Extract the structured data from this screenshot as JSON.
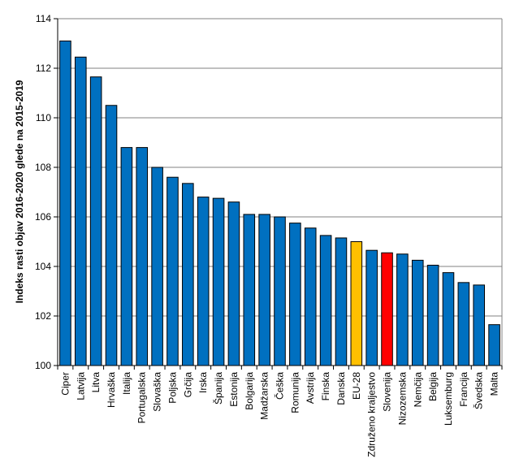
{
  "chart_data": {
    "type": "bar",
    "title": "",
    "xlabel": "",
    "ylabel": "Indeks rasti objav 2016-2020 glede na 2015-2019",
    "ylim": [
      100,
      114
    ],
    "yticks": [
      "100",
      "102",
      "104",
      "106",
      "108",
      "110",
      "112",
      "114"
    ],
    "grid": true,
    "legend": "none",
    "categories": [
      "Ciper",
      "Latvija",
      "Litva",
      "Hrvaška",
      "Italija",
      "Portugalska",
      "Slovaška",
      "Poljska",
      "Grčija",
      "Irska",
      "Španija",
      "Estonija",
      "Bolgarija",
      "Madžarska",
      "Češka",
      "Romunija",
      "Avstrija",
      "Finska",
      "Danska",
      "EU-28",
      "Združeno kraljestvo",
      "Slovenija",
      "Nizozemska",
      "Nemčija",
      "Belgija",
      "Luksemburg",
      "Francija",
      "Švedska",
      "Malta"
    ],
    "values": [
      113.1,
      112.45,
      111.65,
      110.5,
      108.8,
      108.8,
      108.0,
      107.6,
      107.35,
      106.8,
      106.75,
      106.6,
      106.1,
      106.1,
      106.0,
      105.75,
      105.55,
      105.25,
      105.15,
      105.0,
      104.65,
      104.55,
      104.5,
      104.25,
      104.05,
      103.75,
      103.35,
      103.25,
      101.65
    ],
    "colors": {
      "default": "#0070C0",
      "highlight_eu": "#FFC000",
      "highlight_si": "#FF0000",
      "border": "#000000",
      "grid": "#808080"
    },
    "highlights": {
      "EU-28": "highlight_eu",
      "Slovenija": "highlight_si"
    }
  }
}
